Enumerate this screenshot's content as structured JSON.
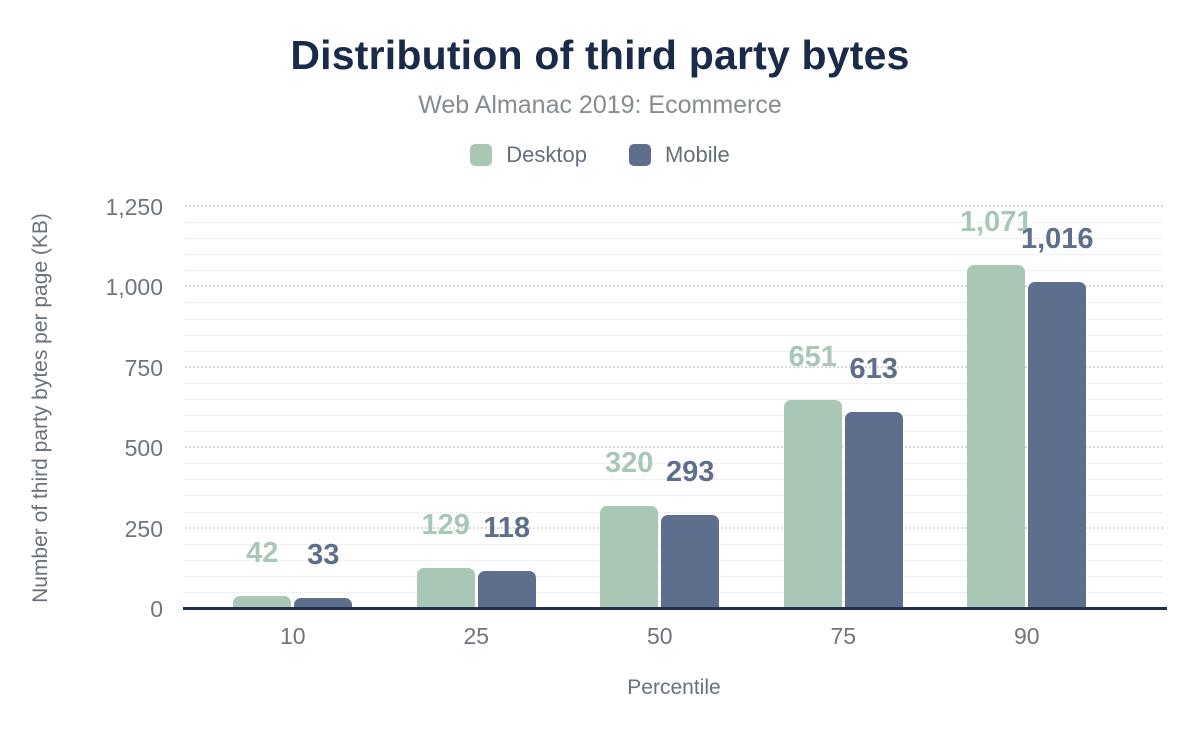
{
  "chart_data": {
    "type": "bar",
    "title": "Distribution of third party bytes",
    "subtitle": "Web Almanac 2019: Ecommerce",
    "categories": [
      "10",
      "25",
      "50",
      "75",
      "90"
    ],
    "series": [
      {
        "name": "Desktop",
        "color": "#a8c8b5",
        "values": [
          42,
          129,
          320,
          651,
          1071
        ]
      },
      {
        "name": "Mobile",
        "color": "#5e6e8d",
        "values": [
          33,
          118,
          293,
          613,
          1016
        ]
      }
    ],
    "xlabel": "Percentile",
    "ylabel": "Number of third party bytes per page (KB)",
    "ylim": [
      0,
      1250
    ],
    "y_major_step": 250,
    "y_minor_step": 50,
    "y_tick_labels": [
      "0",
      "250",
      "500",
      "750",
      "1,000",
      "1,250"
    ],
    "grid": "horizontal-dotted",
    "legend_position": "top",
    "data_labels": true
  },
  "palette": {
    "title_text": "#1a2b49",
    "subtitle_text": "#848d93",
    "legend_text": "#646f7a",
    "tick_text": "#6e767d",
    "axis_title_text": "#68727c",
    "axis_line": "#22304f",
    "gridline": "#e4e4e8",
    "background": "#ffffff"
  }
}
